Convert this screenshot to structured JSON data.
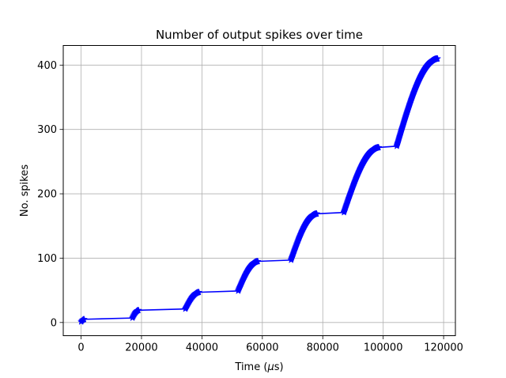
{
  "chart_data": {
    "type": "line",
    "title": "Number of output spikes over time",
    "xlabel_pre": "Time (",
    "xlabel_mu": "μ",
    "xlabel_post": "s)",
    "ylabel": "No. spikes",
    "xlim": [
      -5900,
      123900
    ],
    "ylim": [
      -20.5,
      430.5
    ],
    "xticks": [
      0,
      20000,
      40000,
      60000,
      80000,
      100000,
      120000
    ],
    "xtick_labels": [
      "0",
      "20000",
      "40000",
      "60000",
      "80000",
      "100000",
      "120000"
    ],
    "yticks": [
      0,
      100,
      200,
      300,
      400
    ],
    "ytick_labels": [
      "0",
      "100",
      "200",
      "300",
      "400"
    ],
    "grid": true,
    "color": "#0000ff",
    "marker": "star",
    "series": [
      {
        "segments": [
          {
            "x0": 0,
            "x1": 1000,
            "y0": 1,
            "y1": 5
          },
          {
            "x0": 17000,
            "x1": 19000,
            "y0": 7,
            "y1": 19
          },
          {
            "x0": 34500,
            "x1": 39000,
            "y0": 21,
            "y1": 47
          },
          {
            "x0": 52000,
            "x1": 58500,
            "y0": 49,
            "y1": 95
          },
          {
            "x0": 69500,
            "x1": 78000,
            "y0": 97,
            "y1": 169
          },
          {
            "x0": 87000,
            "x1": 98500,
            "y0": 171,
            "y1": 272
          },
          {
            "x0": 104500,
            "x1": 118000,
            "y0": 274,
            "y1": 410
          }
        ]
      }
    ]
  }
}
